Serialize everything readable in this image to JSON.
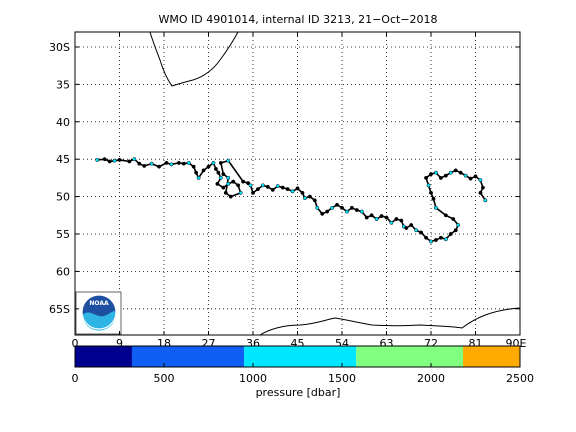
{
  "chart_data": {
    "type": "scatter",
    "title": "WMO ID 4901014, internal ID 3213, 21−Oct−2018",
    "x_ticks": [
      0,
      9,
      18,
      27,
      36,
      45,
      54,
      63,
      72,
      81,
      90
    ],
    "x_tick_labels": [
      "0",
      "9",
      "18",
      "27",
      "36",
      "45",
      "54",
      "63",
      "72",
      "81",
      "90E"
    ],
    "y_ticks": [
      30,
      35,
      40,
      45,
      50,
      55,
      60,
      65
    ],
    "y_tick_labels": [
      "30S",
      "35",
      "40",
      "45",
      "50",
      "55",
      "60",
      "65S"
    ],
    "xlim": [
      0,
      90
    ],
    "ylim": [
      28,
      68.5
    ],
    "grid": true,
    "series": [
      {
        "points": [
          [
            4.5,
            45.1
          ],
          [
            6,
            45.0
          ],
          [
            7,
            45.3
          ],
          [
            8,
            45.2
          ],
          [
            9,
            45.1
          ],
          [
            11,
            45.3
          ],
          [
            12,
            45.0
          ],
          [
            13,
            45.6
          ],
          [
            14,
            45.9
          ],
          [
            15.5,
            45.6
          ],
          [
            17,
            46.0
          ],
          [
            18.5,
            45.5
          ],
          [
            19.5,
            45.7
          ],
          [
            21,
            45.5
          ],
          [
            22,
            45.6
          ],
          [
            23,
            45.5
          ],
          [
            24,
            46.0
          ],
          [
            24.5,
            46.8
          ],
          [
            25,
            47.5
          ],
          [
            26,
            46.5
          ],
          [
            27,
            46.0
          ],
          [
            28,
            45.5
          ],
          [
            28.5,
            46.3
          ],
          [
            29,
            46.8
          ],
          [
            29.5,
            47.5
          ],
          [
            28.8,
            48.3
          ],
          [
            30,
            48.8
          ],
          [
            31,
            48.3
          ],
          [
            32,
            48.0
          ],
          [
            33,
            48.5
          ],
          [
            33.5,
            49.5
          ],
          [
            31.5,
            50.0
          ],
          [
            30.5,
            49.5
          ],
          [
            31,
            47.5
          ],
          [
            30,
            47.0
          ],
          [
            29.5,
            45.5
          ],
          [
            31,
            45.2
          ],
          [
            34,
            48.0
          ],
          [
            35,
            48.2
          ],
          [
            35.5,
            48.5
          ],
          [
            36,
            49.5
          ],
          [
            37,
            49.0
          ],
          [
            38,
            48.5
          ],
          [
            39,
            48.7
          ],
          [
            40,
            49.1
          ],
          [
            41,
            48.6
          ],
          [
            42,
            48.8
          ],
          [
            43,
            49.0
          ],
          [
            44,
            49.3
          ],
          [
            45,
            48.9
          ],
          [
            46,
            49.5
          ],
          [
            46.5,
            50.2
          ],
          [
            47.5,
            50.0
          ],
          [
            48.5,
            50.5
          ],
          [
            49,
            51.5
          ],
          [
            50,
            52.3
          ],
          [
            51,
            52.0
          ],
          [
            52,
            51.5
          ],
          [
            53,
            51.1
          ],
          [
            54,
            51.5
          ],
          [
            55,
            52.0
          ],
          [
            56,
            51.5
          ],
          [
            57,
            51.8
          ],
          [
            58,
            52.0
          ],
          [
            59,
            52.8
          ],
          [
            60,
            52.5
          ],
          [
            61,
            53.0
          ],
          [
            62,
            52.6
          ],
          [
            63,
            52.8
          ],
          [
            64,
            53.5
          ],
          [
            65,
            53.0
          ],
          [
            66,
            53.2
          ],
          [
            66.5,
            54.0
          ],
          [
            67,
            54.2
          ],
          [
            68,
            53.8
          ],
          [
            69,
            54.5
          ],
          [
            70,
            54.8
          ],
          [
            71,
            55.5
          ],
          [
            72,
            56.0
          ],
          [
            73,
            55.8
          ],
          [
            74,
            55.5
          ],
          [
            75,
            55.7
          ],
          [
            76,
            55.0
          ],
          [
            77,
            54.5
          ],
          [
            77.5,
            53.8
          ],
          [
            76.5,
            53.0
          ],
          [
            75,
            52.5
          ],
          [
            73,
            51.5
          ],
          [
            72.5,
            50.3
          ],
          [
            72,
            49.5
          ],
          [
            71.5,
            48.5
          ],
          [
            71,
            47.5
          ],
          [
            72,
            47.0
          ],
          [
            73,
            46.8
          ],
          [
            74,
            47.5
          ],
          [
            75,
            47.2
          ],
          [
            76,
            46.8
          ],
          [
            77,
            46.5
          ],
          [
            78,
            46.8
          ],
          [
            79,
            47.2
          ],
          [
            80,
            47.6
          ],
          [
            81,
            47.3
          ],
          [
            82,
            47.8
          ],
          [
            82.5,
            48.8
          ],
          [
            82,
            49.5
          ],
          [
            83,
            50.5
          ]
        ]
      }
    ],
    "colorbar": {
      "label": "pressure [dbar]",
      "ticks": [
        0,
        500,
        1000,
        1500,
        2000,
        2500
      ],
      "segments": [
        {
          "from": 0,
          "to": 320,
          "color": "#00008f"
        },
        {
          "from": 320,
          "to": 950,
          "color": "#0f5ff5"
        },
        {
          "from": 950,
          "to": 1580,
          "color": "#00e6ff"
        },
        {
          "from": 1580,
          "to": 2180,
          "color": "#80ff80"
        },
        {
          "from": 2180,
          "to": 2500,
          "color": "#ffaa00"
        }
      ]
    },
    "coastline_color": "#000000",
    "track_color": "#000000",
    "marker_color": "#00e6ff"
  }
}
